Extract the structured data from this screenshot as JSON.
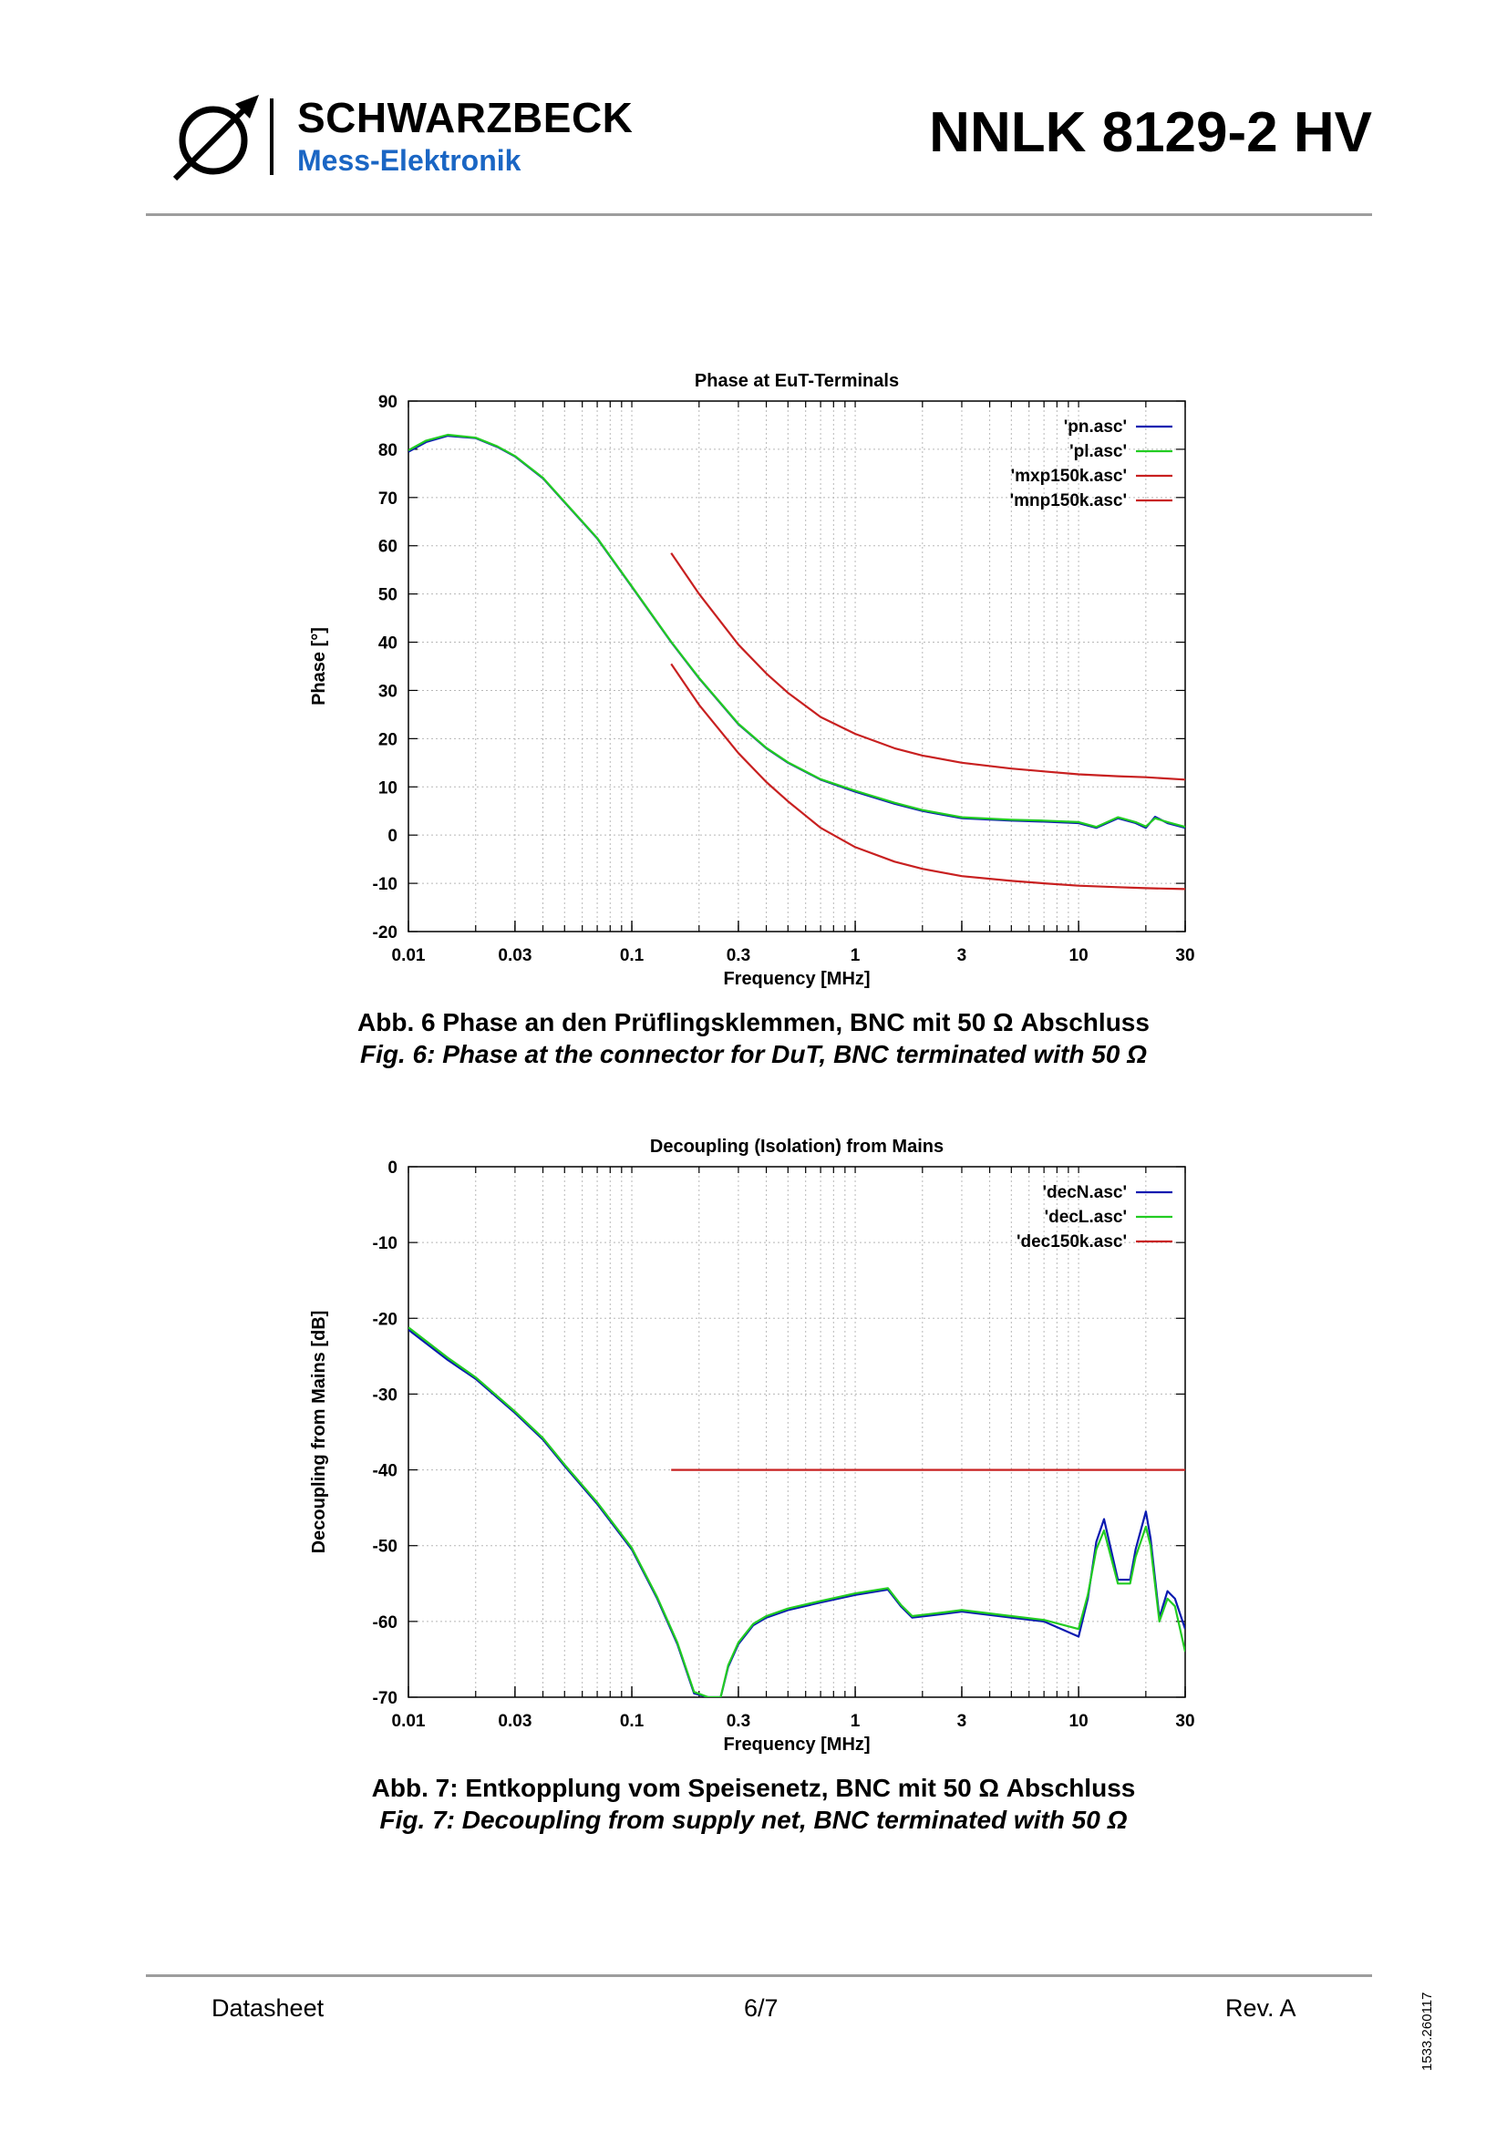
{
  "header": {
    "brand_name": "SCHWARZBECK",
    "brand_subtitle": "Mess-Elektronik",
    "product_title": "NNLK 8129-2 HV"
  },
  "chart_data": [
    {
      "type": "line",
      "title": "Phase at EuT-Terminals",
      "xlabel": "Frequency [MHz]",
      "ylabel": "Phase [°]",
      "xscale": "log",
      "xlim": [
        0.01,
        30
      ],
      "ylim": [
        -20,
        90
      ],
      "xticks": [
        0.01,
        0.03,
        0.1,
        0.3,
        1,
        3,
        10,
        30
      ],
      "xtick_labels": [
        "0.01",
        "0.03",
        "0.1",
        "0.3",
        "1",
        "3",
        "10",
        "30"
      ],
      "yticks": [
        -20,
        -10,
        0,
        10,
        20,
        30,
        40,
        50,
        60,
        70,
        80,
        90
      ],
      "ytick_labels": [
        "-20",
        "-10",
        "0",
        "10",
        "20",
        "30",
        "40",
        "50",
        "60",
        "70",
        "80",
        "90"
      ],
      "grid": true,
      "legend_position": "top-right",
      "series": [
        {
          "name": "'pn.asc'",
          "color": "#0a1ab0",
          "x": [
            0.01,
            0.012,
            0.015,
            0.02,
            0.025,
            0.03,
            0.04,
            0.05,
            0.07,
            0.1,
            0.15,
            0.2,
            0.3,
            0.4,
            0.5,
            0.7,
            1,
            1.5,
            2,
            3,
            5,
            7,
            10,
            12,
            15,
            18,
            20,
            22,
            25,
            30
          ],
          "y": [
            79.5,
            81.5,
            82.8,
            82.3,
            80.5,
            78.5,
            74,
            69,
            61.5,
            51.5,
            40,
            32.5,
            23,
            18,
            15,
            11.5,
            9,
            6.5,
            5,
            3.5,
            3,
            2.8,
            2.5,
            1.5,
            3.5,
            2.5,
            1.5,
            3.8,
            2.5,
            1.5
          ]
        },
        {
          "name": "'pl.asc'",
          "color": "#22cc22",
          "x": [
            0.01,
            0.012,
            0.015,
            0.02,
            0.025,
            0.03,
            0.04,
            0.05,
            0.07,
            0.1,
            0.15,
            0.2,
            0.3,
            0.4,
            0.5,
            0.7,
            1,
            1.5,
            2,
            3,
            5,
            7,
            10,
            12,
            15,
            18,
            20,
            22,
            25,
            30
          ],
          "y": [
            79.8,
            81.8,
            83,
            82.4,
            80.6,
            78.6,
            74.1,
            69.1,
            61.6,
            51.6,
            40.1,
            32.6,
            23.1,
            18.1,
            15.1,
            11.6,
            9.2,
            6.7,
            5.2,
            3.7,
            3.2,
            3,
            2.7,
            1.7,
            3.7,
            2.7,
            1.8,
            3.5,
            2.7,
            1.7
          ]
        },
        {
          "name": "'mxp150k.asc'",
          "color": "#c82020",
          "x": [
            0.15,
            0.2,
            0.3,
            0.4,
            0.5,
            0.7,
            1,
            1.5,
            2,
            3,
            5,
            7,
            10,
            15,
            20,
            30
          ],
          "y": [
            58.5,
            50,
            39.5,
            33.5,
            29.5,
            24.5,
            21,
            18,
            16.5,
            15,
            13.8,
            13.2,
            12.6,
            12.2,
            12,
            11.5
          ]
        },
        {
          "name": "'mnp150k.asc'",
          "color": "#c82020",
          "x": [
            0.15,
            0.2,
            0.3,
            0.4,
            0.5,
            0.7,
            1,
            1.5,
            2,
            3,
            5,
            7,
            10,
            15,
            20,
            30
          ],
          "y": [
            35.5,
            27,
            17,
            11,
            7,
            1.5,
            -2.5,
            -5.5,
            -7,
            -8.5,
            -9.5,
            -10,
            -10.5,
            -10.8,
            -11,
            -11.2
          ]
        }
      ]
    },
    {
      "type": "line",
      "title": "Decoupling (Isolation) from Mains",
      "xlabel": "Frequency [MHz]",
      "ylabel": "Decoupling from Mains [dB]",
      "xscale": "log",
      "xlim": [
        0.01,
        30
      ],
      "ylim": [
        -70,
        0
      ],
      "xticks": [
        0.01,
        0.03,
        0.1,
        0.3,
        1,
        3,
        10,
        30
      ],
      "xtick_labels": [
        "0.01",
        "0.03",
        "0.1",
        "0.3",
        "1",
        "3",
        "10",
        "30"
      ],
      "yticks": [
        -70,
        -60,
        -50,
        -40,
        -30,
        -20,
        -10,
        0
      ],
      "ytick_labels": [
        "-70",
        "-60",
        "-50",
        "-40",
        "-30",
        "-20",
        "-10",
        "0"
      ],
      "grid": true,
      "legend_position": "top-right",
      "series": [
        {
          "name": "'decN.asc'",
          "color": "#0a1ab0",
          "x": [
            0.01,
            0.015,
            0.02,
            0.03,
            0.04,
            0.05,
            0.07,
            0.1,
            0.13,
            0.16,
            0.19,
            0.22,
            0.25,
            0.27,
            0.3,
            0.35,
            0.4,
            0.5,
            0.7,
            1,
            1.4,
            1.6,
            1.8,
            2.5,
            3,
            5,
            7,
            10,
            11,
            12,
            13,
            15,
            17,
            18,
            20,
            21,
            23,
            25,
            27,
            30
          ],
          "y": [
            -21.5,
            -25.5,
            -28,
            -32.5,
            -36,
            -39.5,
            -44.5,
            -50.5,
            -57,
            -63,
            -69.5,
            -70,
            -70,
            -66,
            -63,
            -60.5,
            -59.5,
            -58.5,
            -57.5,
            -56.5,
            -55.8,
            -58,
            -59.5,
            -59,
            -58.7,
            -59.5,
            -60,
            -62,
            -57,
            -49.5,
            -46.5,
            -54.5,
            -54.5,
            -50.5,
            -45.5,
            -49,
            -59.5,
            -56,
            -57,
            -61
          ]
        },
        {
          "name": "'decL.asc'",
          "color": "#22cc22",
          "x": [
            0.01,
            0.015,
            0.02,
            0.03,
            0.04,
            0.05,
            0.07,
            0.1,
            0.13,
            0.16,
            0.19,
            0.22,
            0.25,
            0.27,
            0.3,
            0.35,
            0.4,
            0.5,
            0.7,
            1,
            1.4,
            1.6,
            1.8,
            2.5,
            3,
            5,
            7,
            10,
            11,
            12,
            13,
            15,
            17,
            18,
            20,
            21,
            23,
            25,
            27,
            30
          ],
          "y": [
            -21.2,
            -25.2,
            -27.8,
            -32.3,
            -35.8,
            -39.3,
            -44.3,
            -50.3,
            -56.8,
            -62.8,
            -69.3,
            -70,
            -70,
            -65.8,
            -62.8,
            -60.3,
            -59.3,
            -58.3,
            -57.3,
            -56.3,
            -55.6,
            -57.8,
            -59.3,
            -58.8,
            -58.5,
            -59.3,
            -59.8,
            -61,
            -56.5,
            -50.5,
            -48,
            -55,
            -55,
            -51.5,
            -47.5,
            -50,
            -60,
            -57,
            -58,
            -64
          ]
        },
        {
          "name": "'dec150k.asc'",
          "color": "#c82020",
          "x": [
            0.15,
            30
          ],
          "y": [
            -40,
            -40
          ]
        }
      ]
    }
  ],
  "captions": {
    "fig6_de": "Abb. 6 Phase an den Prüflingsklemmen, BNC mit 50 Ω Abschluss",
    "fig6_en": "Fig. 6: Phase at the connector for DuT, BNC terminated with 50 Ω",
    "fig7_de": "Abb. 7: Entkopplung vom Speisenetz, BNC mit 50 Ω Abschluss",
    "fig7_en": "Fig. 7: Decoupling from supply net, BNC terminated with 50 Ω"
  },
  "footer": {
    "left": "Datasheet",
    "center": "6/7",
    "right": "Rev. A",
    "doc_number": "1533.260117"
  },
  "colors": {
    "brand_blue": "#1a66c4",
    "rule_gray": "#9d9d9d"
  }
}
